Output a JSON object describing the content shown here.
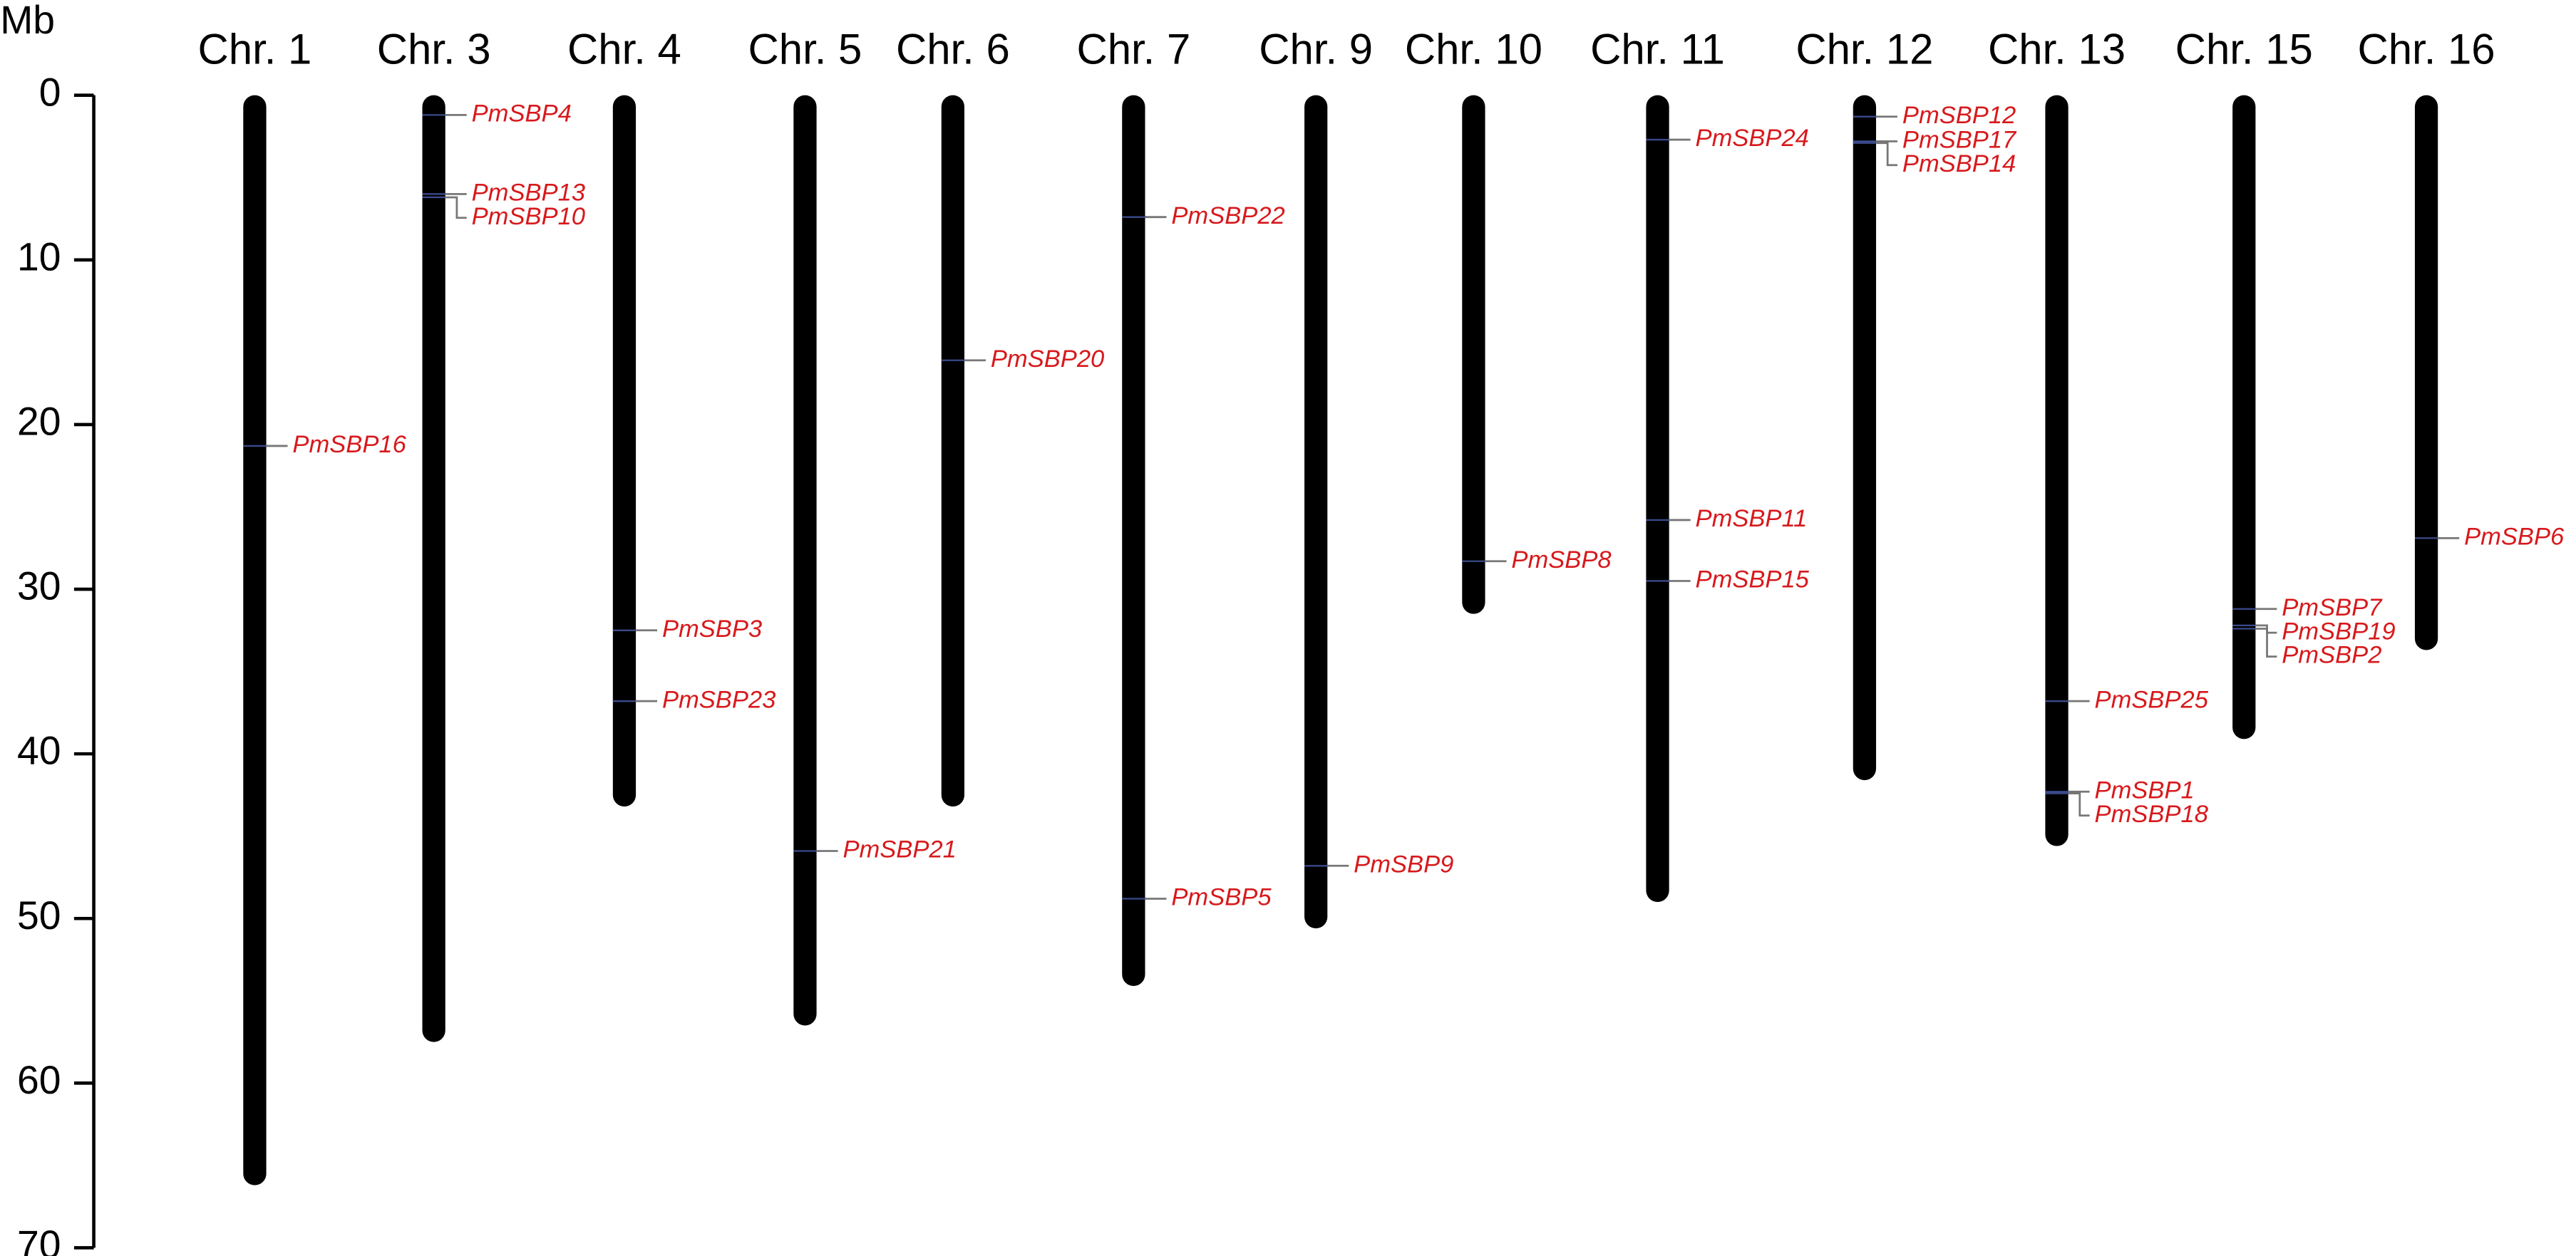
{
  "chart_data": {
    "type": "ideogram",
    "ylabel": "Mb",
    "ylim": [
      0,
      70
    ],
    "yticks": [
      0,
      10,
      20,
      30,
      40,
      50,
      60,
      70
    ],
    "chromosome_color": "#000000",
    "gene_label_color": "#d7191c",
    "chromosomes": [
      {
        "name": "Chr. 1",
        "length": 66.2,
        "genes": [
          {
            "name": "PmSBP16",
            "position": 21.3
          }
        ]
      },
      {
        "name": "Chr. 3",
        "length": 57.5,
        "genes": [
          {
            "name": "PmSBP4",
            "position": 1.2
          },
          {
            "name": "PmSBP13",
            "position": 6.0
          },
          {
            "name": "PmSBP10",
            "position": 6.2
          }
        ]
      },
      {
        "name": "Chr. 4",
        "length": 43.2,
        "genes": [
          {
            "name": "PmSBP3",
            "position": 32.5
          },
          {
            "name": "PmSBP23",
            "position": 36.8
          }
        ]
      },
      {
        "name": "Chr. 5",
        "length": 56.5,
        "genes": [
          {
            "name": "PmSBP21",
            "position": 45.9
          }
        ]
      },
      {
        "name": "Chr. 6",
        "length": 43.2,
        "genes": [
          {
            "name": "PmSBP20",
            "position": 16.1
          }
        ]
      },
      {
        "name": "Chr. 7",
        "length": 54.1,
        "genes": [
          {
            "name": "PmSBP22",
            "position": 7.4
          },
          {
            "name": "PmSBP5",
            "position": 48.8
          }
        ]
      },
      {
        "name": "Chr. 9",
        "length": 50.6,
        "genes": [
          {
            "name": "PmSBP9",
            "position": 46.8
          }
        ]
      },
      {
        "name": "Chr. 10",
        "length": 31.5,
        "genes": [
          {
            "name": "PmSBP8",
            "position": 28.3
          }
        ]
      },
      {
        "name": "Chr. 11",
        "length": 49.0,
        "genes": [
          {
            "name": "PmSBP24",
            "position": 2.7
          },
          {
            "name": "PmSBP11",
            "position": 25.8
          },
          {
            "name": "PmSBP15",
            "position": 29.5
          }
        ]
      },
      {
        "name": "Chr. 12",
        "length": 41.6,
        "genes": [
          {
            "name": "PmSBP12",
            "position": 1.3
          },
          {
            "name": "PmSBP17",
            "position": 2.8
          },
          {
            "name": "PmSBP14",
            "position": 2.9
          }
        ]
      },
      {
        "name": "Chr. 13",
        "length": 45.6,
        "genes": [
          {
            "name": "PmSBP25",
            "position": 36.8
          },
          {
            "name": "PmSBP1",
            "position": 42.3
          },
          {
            "name": "PmSBP18",
            "position": 42.4
          }
        ]
      },
      {
        "name": "Chr. 15",
        "length": 39.1,
        "genes": [
          {
            "name": "PmSBP7",
            "position": 31.2
          },
          {
            "name": "PmSBP19",
            "position": 32.2
          },
          {
            "name": "PmSBP2",
            "position": 32.4
          }
        ]
      },
      {
        "name": "Chr. 16",
        "length": 33.7,
        "genes": [
          {
            "name": "PmSBP6",
            "position": 26.9
          }
        ]
      }
    ]
  }
}
